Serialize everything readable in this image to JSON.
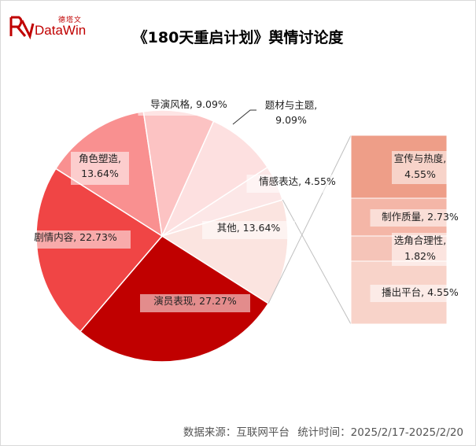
{
  "header": {
    "logo_text_cn": "德塔文",
    "logo_text_en": "DataWin",
    "title": "《180天重启计划》舆情讨论度"
  },
  "footer": {
    "source": "数据来源：互联网平台",
    "period": "统计时间：2025/2/17-2025/2/20"
  },
  "colors": {
    "brand": "#c00000"
  },
  "chart_data": {
    "type": "pie",
    "title": "《180天重启计划》舆情讨论度",
    "slices": [
      {
        "name": "演员表现",
        "value": 27.27,
        "label": "演员表现, 27.27%",
        "color": "#c00000"
      },
      {
        "name": "剧情内容",
        "value": 22.73,
        "label": "剧情内容, 22.73%",
        "color": "#f04545"
      },
      {
        "name": "角色塑造",
        "value": 13.64,
        "label": "角色塑造,\n13.64%",
        "color": "#f99090"
      },
      {
        "name": "导演风格",
        "value": 9.09,
        "label": "导演风格, 9.09%",
        "color": "#fcc3c3"
      },
      {
        "name": "题材与主题",
        "value": 9.09,
        "label": "题材与主题,\n9.09%",
        "color": "#fde0e0"
      },
      {
        "name": "情感表达",
        "value": 4.55,
        "label": "情感表达, 4.55%",
        "color": "#fce7e7"
      },
      {
        "name": "其他",
        "value": 13.64,
        "label": "其他, 13.64%",
        "color": "#fbe4e0"
      }
    ],
    "sub_bar": {
      "parent": "其他",
      "items": [
        {
          "name": "宣传与热度",
          "value": 4.55,
          "label": "宣传与热度,\n4.55%",
          "color": "#ee9e88"
        },
        {
          "name": "制作质量",
          "value": 2.73,
          "label": "制作质量, 2.73%",
          "color": "#f4b6a7"
        },
        {
          "name": "选角合理性",
          "value": 1.82,
          "label": "选角合理性,\n1.82%",
          "color": "#f5c4b8"
        },
        {
          "name": "播出平台",
          "value": 4.55,
          "label": "播出平台, 4.55%",
          "color": "#f8d3c9"
        }
      ]
    }
  }
}
